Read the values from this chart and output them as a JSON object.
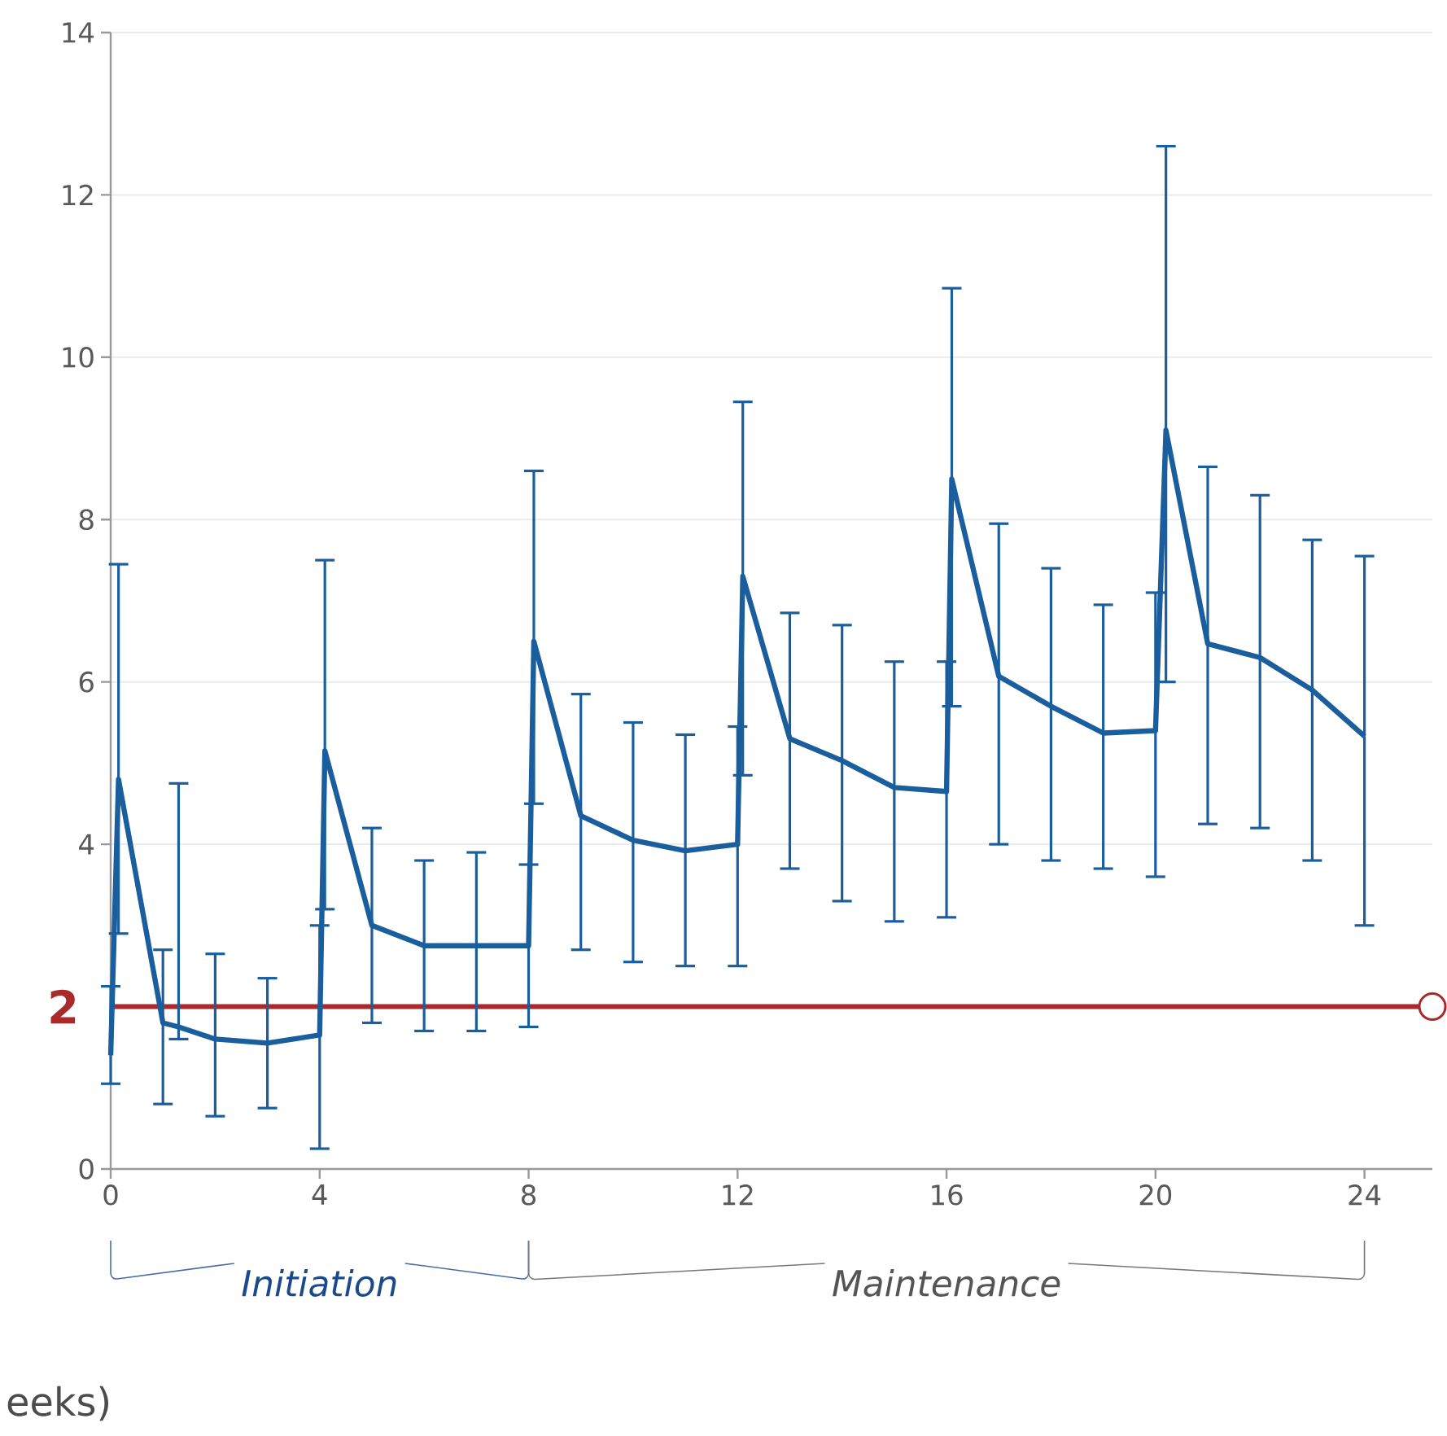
{
  "chart_data": {
    "type": "line",
    "xlabel": "eeks)",
    "x": [
      0,
      0.15,
      1,
      1.3,
      2,
      3,
      4,
      4.1,
      5,
      6,
      7,
      8,
      8.1,
      9,
      10,
      11,
      12,
      12.1,
      13,
      14,
      15,
      16,
      16.1,
      17,
      18,
      19,
      20,
      20.2,
      21,
      22,
      23,
      24
    ],
    "series": [
      {
        "color": "#1a5e9e",
        "values": [
          1.4,
          4.8,
          1.8,
          1.75,
          1.6,
          1.55,
          1.65,
          5.15,
          3.0,
          2.75,
          2.75,
          2.75,
          6.5,
          4.35,
          4.05,
          3.92,
          4.0,
          7.3,
          5.3,
          5.03,
          4.7,
          4.65,
          8.5,
          6.07,
          5.7,
          5.37,
          5.4,
          9.1,
          6.47,
          6.3,
          5.9,
          5.33
        ],
        "errors": [
          [
            1.05,
            2.25
          ],
          [
            2.9,
            7.45
          ],
          [
            0.8,
            2.7
          ],
          [
            1.6,
            4.75
          ],
          [
            0.65,
            2.65
          ],
          [
            0.75,
            2.35
          ],
          [
            0.25,
            3.0
          ],
          [
            3.2,
            7.5
          ],
          [
            1.8,
            4.2
          ],
          [
            1.7,
            3.8
          ],
          [
            1.7,
            3.9
          ],
          [
            1.75,
            3.75
          ],
          [
            4.5,
            8.6
          ],
          [
            2.7,
            5.85
          ],
          [
            2.55,
            5.5
          ],
          [
            2.5,
            5.35
          ],
          [
            2.5,
            5.45
          ],
          [
            4.85,
            9.45
          ],
          [
            3.7,
            6.85
          ],
          [
            3.3,
            6.7
          ],
          [
            3.05,
            6.25
          ],
          [
            3.1,
            6.25
          ],
          [
            5.7,
            10.85
          ],
          [
            4.0,
            7.95
          ],
          [
            3.8,
            7.4
          ],
          [
            3.7,
            6.95
          ],
          [
            3.6,
            7.1
          ],
          [
            6.0,
            12.6
          ],
          [
            4.25,
            8.65
          ],
          [
            4.2,
            8.3
          ],
          [
            3.8,
            7.75
          ],
          [
            3.0,
            7.55
          ]
        ]
      }
    ],
    "xlim": [
      0,
      25.3
    ],
    "ylim": [
      0,
      14
    ],
    "xticks": [
      0,
      4,
      8,
      12,
      16,
      20,
      24
    ],
    "yticks": [
      0,
      4,
      6,
      8,
      10,
      12,
      14
    ],
    "grid": "y",
    "marker": "none",
    "line_style": "solid",
    "ref_lines": [
      {
        "axis": "y",
        "value": 2,
        "label": "2",
        "color": "#a82a2a"
      }
    ],
    "annotations": [
      "Initiation",
      "Maintenance"
    ]
  }
}
